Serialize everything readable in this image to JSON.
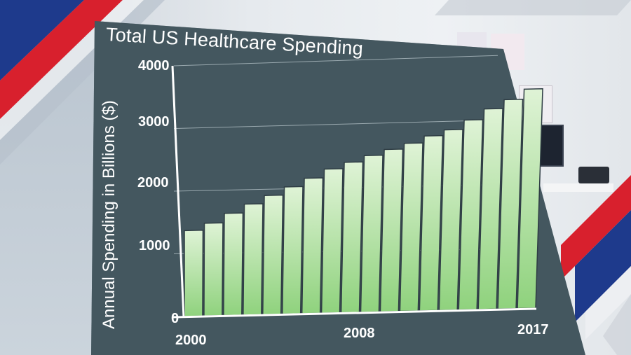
{
  "chart_data": {
    "type": "bar",
    "title": "Total US Healthcare Spending",
    "ylabel": "Annual Spending in Billions ($)",
    "xlabel": "",
    "x_tick_labels": [
      "2000",
      "2008",
      "2017"
    ],
    "y_tick_labels": [
      "4000",
      "3000",
      "2000",
      "1000",
      "0"
    ],
    "ylim": [
      0,
      4000
    ],
    "grid": true,
    "categories": [
      "2000",
      "2001",
      "2002",
      "2003",
      "2004",
      "2005",
      "2006",
      "2007",
      "2008",
      "2009",
      "2010",
      "2011",
      "2012",
      "2013",
      "2014",
      "2015",
      "2016",
      "2017"
    ],
    "values": [
      1370,
      1480,
      1630,
      1770,
      1900,
      2030,
      2160,
      2300,
      2400,
      2500,
      2590,
      2680,
      2790,
      2880,
      3030,
      3200,
      3340,
      3500
    ]
  },
  "colors": {
    "bar_top": "#dff3d6",
    "bar_bottom": "#8fd27d",
    "bar_edge": "#2f3d44",
    "card": "#3d4f58",
    "text": "#ffffff",
    "accent_red": "#d8202d",
    "accent_blue": "#1e3a8c"
  }
}
